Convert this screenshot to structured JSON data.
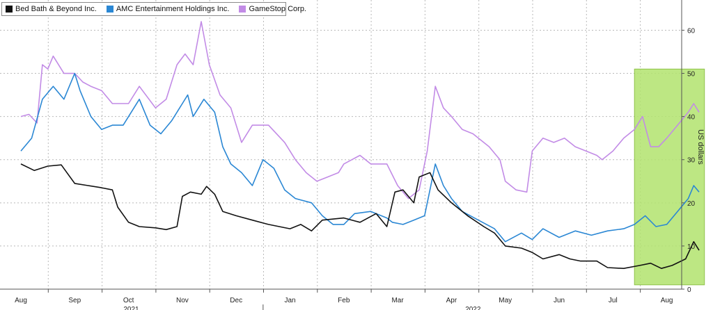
{
  "chart_data": {
    "type": "line",
    "title": "",
    "ylabel": "US dollars",
    "ylim": [
      0,
      67
    ],
    "yticks": [
      0,
      10,
      20,
      30,
      40,
      50,
      60
    ],
    "x_months": [
      "Aug",
      "Sep",
      "Oct",
      "Nov",
      "Dec",
      "Jan",
      "Feb",
      "Mar",
      "Apr",
      "May",
      "Jun",
      "Jul",
      "Aug"
    ],
    "x_years": [
      "2021",
      "2022"
    ],
    "grid": true,
    "legend_position": "top-left",
    "highlight": {
      "from_month": 11.4,
      "to_month": 12.7,
      "y_from": 1,
      "y_to": 51,
      "color": "#b2e36d"
    },
    "series": [
      {
        "name": "Bed Bath & Beyond Inc.",
        "color": "#111111",
        "points": [
          [
            0,
            29
          ],
          [
            0.25,
            27.5
          ],
          [
            0.5,
            28.5
          ],
          [
            0.75,
            28.8
          ],
          [
            1.0,
            24.5
          ],
          [
            1.25,
            24
          ],
          [
            1.5,
            23.5
          ],
          [
            1.7,
            23
          ],
          [
            1.8,
            19
          ],
          [
            2.0,
            15.5
          ],
          [
            2.2,
            14.5
          ],
          [
            2.5,
            14.2
          ],
          [
            2.7,
            13.8
          ],
          [
            2.9,
            14.5
          ],
          [
            3.0,
            21.5
          ],
          [
            3.15,
            22.5
          ],
          [
            3.35,
            22
          ],
          [
            3.45,
            23.8
          ],
          [
            3.6,
            22
          ],
          [
            3.75,
            18
          ],
          [
            4.0,
            17
          ],
          [
            4.3,
            16
          ],
          [
            4.6,
            15
          ],
          [
            5.0,
            14
          ],
          [
            5.2,
            15
          ],
          [
            5.4,
            13.5
          ],
          [
            5.6,
            16
          ],
          [
            6.0,
            16.5
          ],
          [
            6.3,
            15.5
          ],
          [
            6.6,
            17.5
          ],
          [
            6.8,
            14.5
          ],
          [
            6.95,
            22.5
          ],
          [
            7.1,
            23
          ],
          [
            7.3,
            20
          ],
          [
            7.4,
            26
          ],
          [
            7.6,
            27
          ],
          [
            7.75,
            23
          ],
          [
            8.0,
            20
          ],
          [
            8.3,
            17
          ],
          [
            8.6,
            14.5
          ],
          [
            8.8,
            13
          ],
          [
            9.0,
            10
          ],
          [
            9.3,
            9.5
          ],
          [
            9.5,
            8.5
          ],
          [
            9.7,
            7
          ],
          [
            10.0,
            8
          ],
          [
            10.2,
            7
          ],
          [
            10.4,
            6.5
          ],
          [
            10.7,
            6.5
          ],
          [
            10.9,
            5
          ],
          [
            11.2,
            4.8
          ],
          [
            11.5,
            5.5
          ],
          [
            11.7,
            6
          ],
          [
            11.9,
            4.8
          ],
          [
            12.1,
            5.5
          ],
          [
            12.35,
            7
          ],
          [
            12.5,
            11
          ],
          [
            12.6,
            9
          ]
        ]
      },
      {
        "name": "AMC Entertainment Holdings Inc.",
        "color": "#2a87d4",
        "points": [
          [
            0,
            32
          ],
          [
            0.2,
            35
          ],
          [
            0.4,
            44
          ],
          [
            0.6,
            47
          ],
          [
            0.8,
            44
          ],
          [
            1.0,
            50
          ],
          [
            1.1,
            46
          ],
          [
            1.3,
            40
          ],
          [
            1.5,
            37
          ],
          [
            1.7,
            38
          ],
          [
            1.9,
            38
          ],
          [
            2.2,
            44
          ],
          [
            2.4,
            38
          ],
          [
            2.6,
            36
          ],
          [
            2.8,
            39
          ],
          [
            3.0,
            43
          ],
          [
            3.1,
            45
          ],
          [
            3.2,
            40
          ],
          [
            3.4,
            44
          ],
          [
            3.6,
            41
          ],
          [
            3.75,
            33
          ],
          [
            3.9,
            29
          ],
          [
            4.1,
            27
          ],
          [
            4.3,
            24
          ],
          [
            4.5,
            30
          ],
          [
            4.7,
            28
          ],
          [
            4.9,
            23
          ],
          [
            5.1,
            21
          ],
          [
            5.4,
            20
          ],
          [
            5.6,
            17
          ],
          [
            5.8,
            15
          ],
          [
            6.0,
            15
          ],
          [
            6.2,
            17.5
          ],
          [
            6.5,
            18
          ],
          [
            6.8,
            16.5
          ],
          [
            6.9,
            15.5
          ],
          [
            7.1,
            15
          ],
          [
            7.3,
            16
          ],
          [
            7.5,
            17
          ],
          [
            7.6,
            23
          ],
          [
            7.7,
            29
          ],
          [
            7.85,
            24
          ],
          [
            8.0,
            21
          ],
          [
            8.2,
            18
          ],
          [
            8.5,
            16
          ],
          [
            8.8,
            14
          ],
          [
            9.0,
            11
          ],
          [
            9.3,
            13
          ],
          [
            9.5,
            11.5
          ],
          [
            9.7,
            14
          ],
          [
            10.0,
            12
          ],
          [
            10.3,
            13.5
          ],
          [
            10.6,
            12.5
          ],
          [
            10.9,
            13.5
          ],
          [
            11.2,
            14
          ],
          [
            11.4,
            15
          ],
          [
            11.6,
            17
          ],
          [
            11.8,
            14.5
          ],
          [
            12.0,
            15
          ],
          [
            12.2,
            18
          ],
          [
            12.4,
            21
          ],
          [
            12.5,
            24
          ],
          [
            12.6,
            22.5
          ]
        ]
      },
      {
        "name": "GameStop Corp.",
        "color": "#c28be6",
        "points": [
          [
            0,
            40
          ],
          [
            0.15,
            40.5
          ],
          [
            0.3,
            38.5
          ],
          [
            0.4,
            52
          ],
          [
            0.5,
            51
          ],
          [
            0.6,
            54
          ],
          [
            0.8,
            50
          ],
          [
            1.0,
            50
          ],
          [
            1.15,
            48
          ],
          [
            1.3,
            47
          ],
          [
            1.5,
            46
          ],
          [
            1.7,
            43
          ],
          [
            2.0,
            43
          ],
          [
            2.2,
            47
          ],
          [
            2.5,
            42
          ],
          [
            2.7,
            44
          ],
          [
            2.9,
            52
          ],
          [
            3.05,
            54.5
          ],
          [
            3.2,
            52
          ],
          [
            3.35,
            62
          ],
          [
            3.5,
            52
          ],
          [
            3.7,
            45
          ],
          [
            3.9,
            42
          ],
          [
            4.1,
            34
          ],
          [
            4.3,
            38
          ],
          [
            4.6,
            38
          ],
          [
            4.9,
            34
          ],
          [
            5.1,
            30
          ],
          [
            5.3,
            27
          ],
          [
            5.5,
            25
          ],
          [
            5.7,
            26
          ],
          [
            5.9,
            27
          ],
          [
            6.0,
            29
          ],
          [
            6.3,
            31
          ],
          [
            6.5,
            29
          ],
          [
            6.8,
            29
          ],
          [
            7.0,
            24
          ],
          [
            7.2,
            21
          ],
          [
            7.4,
            23
          ],
          [
            7.55,
            32
          ],
          [
            7.7,
            47
          ],
          [
            7.85,
            42
          ],
          [
            8.0,
            40
          ],
          [
            8.2,
            37
          ],
          [
            8.4,
            36
          ],
          [
            8.7,
            33
          ],
          [
            8.9,
            30
          ],
          [
            9.0,
            25
          ],
          [
            9.2,
            23
          ],
          [
            9.4,
            22.5
          ],
          [
            9.5,
            32
          ],
          [
            9.7,
            35
          ],
          [
            9.9,
            34
          ],
          [
            10.1,
            35
          ],
          [
            10.3,
            33
          ],
          [
            10.5,
            32
          ],
          [
            10.7,
            31
          ],
          [
            10.8,
            30
          ],
          [
            11.0,
            32
          ],
          [
            11.2,
            35
          ],
          [
            11.4,
            37
          ],
          [
            11.55,
            40
          ],
          [
            11.7,
            33
          ],
          [
            11.85,
            33
          ],
          [
            12.0,
            35
          ],
          [
            12.2,
            38
          ],
          [
            12.4,
            41
          ],
          [
            12.5,
            43
          ],
          [
            12.6,
            41
          ]
        ]
      }
    ]
  }
}
